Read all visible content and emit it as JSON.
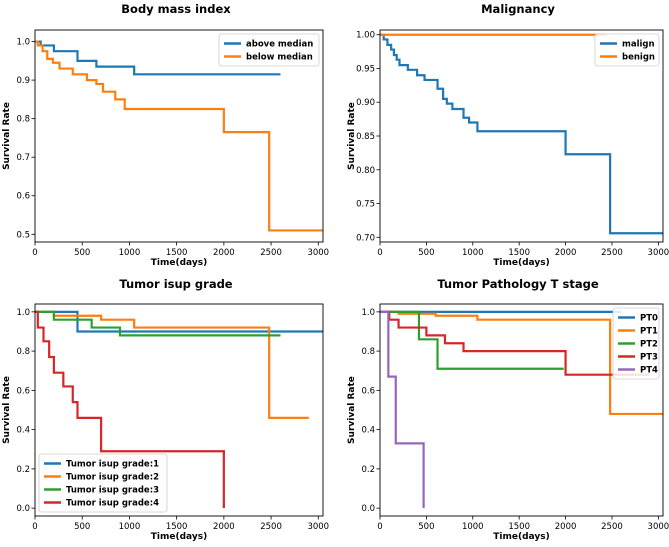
{
  "chart_data": [
    {
      "type": "line",
      "step": true,
      "title": "Body mass index",
      "xlabel": "Time(days)",
      "ylabel": "Survival Rate",
      "xlim": [
        0,
        3050
      ],
      "ylim": [
        0.48,
        1.03
      ],
      "xticks": [
        0,
        500,
        1000,
        1500,
        2000,
        2500,
        3000
      ],
      "yticks": [
        0.5,
        0.6,
        0.7,
        0.8,
        0.9,
        1.0
      ],
      "ytick_labels": [
        "0.5",
        "0.6",
        "0.7",
        "0.8",
        "0.9",
        "1.0"
      ],
      "legend_position": "upper right",
      "series": [
        {
          "name": "above median",
          "color": "#1f77b4",
          "x": [
            0,
            60,
            200,
            450,
            650,
            1050,
            2600
          ],
          "y": [
            1.0,
            0.99,
            0.975,
            0.95,
            0.935,
            0.915,
            0.915
          ]
        },
        {
          "name": "below median",
          "color": "#ff7f0e",
          "x": [
            0,
            30,
            80,
            130,
            190,
            260,
            400,
            550,
            650,
            720,
            850,
            950,
            2000,
            2480,
            3050
          ],
          "y": [
            1.0,
            0.99,
            0.975,
            0.955,
            0.945,
            0.93,
            0.915,
            0.9,
            0.89,
            0.87,
            0.85,
            0.825,
            0.765,
            0.51,
            0.51
          ]
        }
      ]
    },
    {
      "type": "line",
      "step": true,
      "title": "Malignancy",
      "xlabel": "Time(days)",
      "ylabel": "Survival Rate",
      "xlim": [
        0,
        3050
      ],
      "ylim": [
        0.693,
        1.007
      ],
      "xticks": [
        0,
        500,
        1000,
        1500,
        2000,
        2500,
        3000
      ],
      "yticks": [
        0.7,
        0.75,
        0.8,
        0.85,
        0.9,
        0.95,
        1.0
      ],
      "ytick_labels": [
        "0.70",
        "0.75",
        "0.80",
        "0.85",
        "0.90",
        "0.95",
        "1.00"
      ],
      "legend_position": "upper right",
      "series": [
        {
          "name": "malign",
          "color": "#1f77b4",
          "x": [
            0,
            40,
            80,
            120,
            150,
            180,
            210,
            300,
            400,
            480,
            620,
            680,
            720,
            780,
            900,
            960,
            1050,
            2000,
            2480,
            3050
          ],
          "y": [
            1.0,
            0.993,
            0.985,
            0.978,
            0.97,
            0.963,
            0.955,
            0.948,
            0.94,
            0.933,
            0.92,
            0.905,
            0.898,
            0.89,
            0.877,
            0.87,
            0.857,
            0.823,
            0.706,
            0.706
          ]
        },
        {
          "name": "benign",
          "color": "#ff7f0e",
          "x": [
            0,
            2440
          ],
          "y": [
            1.0,
            1.0
          ]
        }
      ]
    },
    {
      "type": "line",
      "step": true,
      "title": "Tumor isup grade",
      "xlabel": "Time(days)",
      "ylabel": "Survival Rate",
      "xlim": [
        0,
        3050
      ],
      "ylim": [
        -0.04,
        1.04
      ],
      "xticks": [
        0,
        500,
        1000,
        1500,
        2000,
        2500,
        3000
      ],
      "yticks": [
        0.0,
        0.2,
        0.4,
        0.6,
        0.8,
        1.0
      ],
      "ytick_labels": [
        "0.0",
        "0.2",
        "0.4",
        "0.6",
        "0.8",
        "1.0"
      ],
      "legend_position": "lower left",
      "series": [
        {
          "name": "Tumor isup grade:1",
          "color": "#1f77b4",
          "x": [
            0,
            450,
            3050
          ],
          "y": [
            1.0,
            0.9,
            0.9
          ]
        },
        {
          "name": "Tumor isup grade:2",
          "color": "#ff7f0e",
          "x": [
            0,
            200,
            700,
            1050,
            2480,
            2900
          ],
          "y": [
            1.0,
            0.98,
            0.96,
            0.92,
            0.46,
            0.46
          ]
        },
        {
          "name": "Tumor isup grade:3",
          "color": "#2ca02c",
          "x": [
            0,
            200,
            600,
            900,
            2600
          ],
          "y": [
            1.0,
            0.96,
            0.92,
            0.88,
            0.88
          ]
        },
        {
          "name": "Tumor isup grade:4",
          "color": "#d62728",
          "x": [
            0,
            30,
            90,
            150,
            200,
            300,
            400,
            450,
            500,
            700,
            2000,
            2000
          ],
          "y": [
            1.0,
            0.92,
            0.85,
            0.77,
            0.69,
            0.62,
            0.54,
            0.46,
            0.46,
            0.29,
            0.29,
            0.0
          ]
        }
      ]
    },
    {
      "type": "line",
      "step": true,
      "title": "Tumor Pathology T stage",
      "xlabel": "Time(days)",
      "ylabel": "Survival Rate",
      "xlim": [
        0,
        3050
      ],
      "ylim": [
        -0.04,
        1.04
      ],
      "xticks": [
        0,
        500,
        1000,
        1500,
        2000,
        2500,
        3000
      ],
      "yticks": [
        0.0,
        0.2,
        0.4,
        0.6,
        0.8,
        1.0
      ],
      "ytick_labels": [
        "0.0",
        "0.2",
        "0.4",
        "0.6",
        "0.8",
        "1.0"
      ],
      "legend_position": "upper right",
      "series": [
        {
          "name": "PT0",
          "color": "#1f77b4",
          "x": [
            0,
            2600
          ],
          "y": [
            1.0,
            1.0
          ]
        },
        {
          "name": "PT1",
          "color": "#ff7f0e",
          "x": [
            0,
            200,
            600,
            1050,
            2480,
            3050
          ],
          "y": [
            1.0,
            0.99,
            0.98,
            0.96,
            0.48,
            0.48
          ]
        },
        {
          "name": "PT2",
          "color": "#2ca02c",
          "x": [
            0,
            420,
            620,
            1980
          ],
          "y": [
            1.0,
            0.86,
            0.71,
            0.71
          ]
        },
        {
          "name": "PT3",
          "color": "#d62728",
          "x": [
            0,
            100,
            200,
            500,
            700,
            900,
            2000,
            2900
          ],
          "y": [
            1.0,
            0.96,
            0.92,
            0.88,
            0.84,
            0.8,
            0.68,
            0.68
          ]
        },
        {
          "name": "PT4",
          "color": "#9467bd",
          "x": [
            0,
            90,
            170,
            470,
            470
          ],
          "y": [
            1.0,
            0.67,
            0.33,
            0.33,
            0.0
          ]
        }
      ]
    }
  ]
}
